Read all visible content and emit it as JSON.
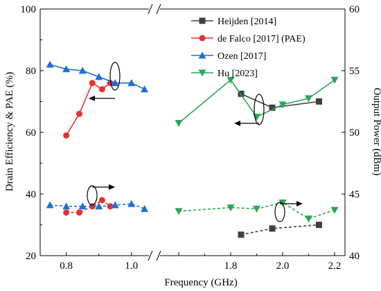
{
  "chart_data": {
    "type": "line",
    "xlabel": "Frequency (GHz)",
    "ylabel_left": "Drain Efficiency & PAE (%)",
    "ylabel_right": "Output Power (dBm)",
    "x_segments": [
      {
        "range": [
          0.72,
          1.06
        ],
        "ticks": [
          0.8,
          1.0
        ],
        "tick_labels": [
          "0.8",
          "1.0"
        ]
      },
      {
        "range": [
          1.52,
          2.24
        ],
        "ticks": [
          1.6,
          1.8,
          2.0,
          2.2
        ],
        "tick_labels": [
          "",
          "1.8",
          "2.0",
          "2.2"
        ]
      }
    ],
    "ylim_left": [
      20,
      100
    ],
    "yticks_left": [
      20,
      40,
      60,
      80,
      100
    ],
    "ylim_right": [
      40,
      60
    ],
    "yticks_right": [
      40,
      45,
      50,
      55,
      60
    ],
    "legend_position": "top-right",
    "series": [
      {
        "name": "Heijden [2014]",
        "color": "#404040",
        "marker": "square",
        "efficiency": {
          "x": [
            1.84,
            1.96,
            2.14
          ],
          "y": [
            72.5,
            68,
            70
          ]
        },
        "output_power": {
          "x": [
            1.84,
            1.96,
            2.14
          ],
          "y": [
            41.7,
            42.2,
            42.5
          ]
        }
      },
      {
        "name": "de Falco [2017] (PAE)",
        "color": "#e8302e",
        "marker": "circle",
        "efficiency": {
          "x": [
            0.8,
            0.84,
            0.88,
            0.91,
            0.935
          ],
          "y": [
            59,
            66,
            76,
            74,
            76
          ]
        },
        "output_power": {
          "x": [
            0.8,
            0.84,
            0.88,
            0.91,
            0.935
          ],
          "y": [
            43.5,
            43.5,
            44,
            44.5,
            44
          ]
        }
      },
      {
        "name": "Ozen [2017]",
        "color": "#1f6fd6",
        "marker": "triangle-up",
        "efficiency": {
          "x": [
            0.75,
            0.8,
            0.85,
            0.9,
            0.95,
            1.0,
            1.04
          ],
          "y": [
            82,
            80.5,
            80,
            78,
            76,
            76,
            74
          ]
        },
        "output_power": {
          "x": [
            0.75,
            0.8,
            0.85,
            0.9,
            0.95,
            1.0,
            1.04
          ],
          "y": [
            44.1,
            44,
            44,
            44,
            44.1,
            44.2,
            43.8
          ]
        }
      },
      {
        "name": "Hu [2023]",
        "color": "#2aa657",
        "marker": "triangle-down",
        "efficiency": {
          "x": [
            1.6,
            1.8,
            1.9,
            2.0,
            2.1,
            2.2
          ],
          "y": [
            63,
            77,
            65,
            69,
            71,
            77
          ]
        },
        "output_power": {
          "x": [
            1.6,
            1.8,
            1.9,
            2.0,
            2.1,
            2.2
          ],
          "y": [
            43.6,
            43.9,
            43.8,
            44.3,
            43,
            43.7
          ]
        }
      }
    ]
  }
}
